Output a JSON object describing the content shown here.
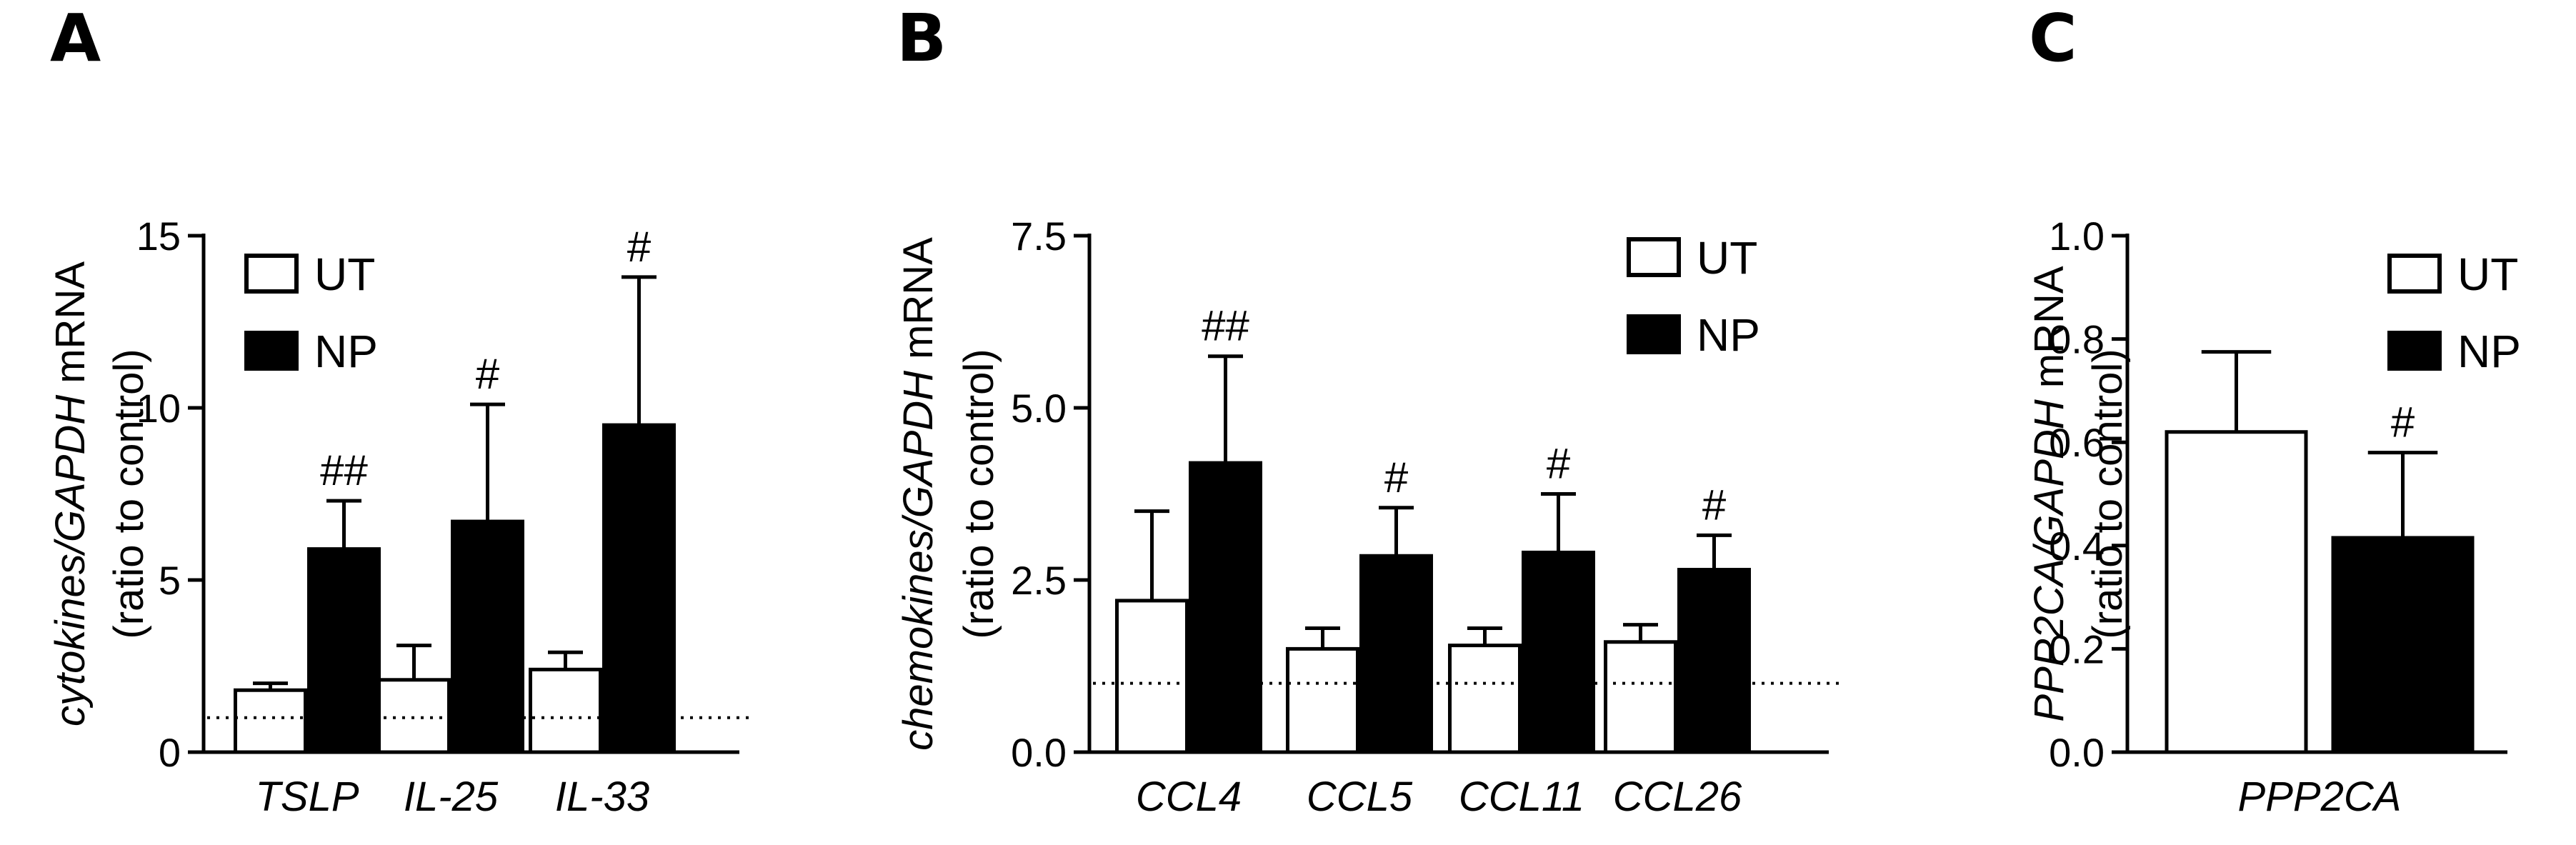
{
  "chart_data": [
    {
      "panel": "A",
      "type": "bar",
      "ylabel_italic": "cytokines/GAPDH",
      "ylabel_rest": " mRNA",
      "ylabel_line2": "(ratio to control)",
      "ylim": [
        0,
        15
      ],
      "yticks": [
        0,
        5,
        10,
        15
      ],
      "ytick_labels": [
        "0",
        "5",
        "10",
        "15"
      ],
      "categories": [
        "TSLP",
        "IL-25",
        "IL-33"
      ],
      "reference_line": 1,
      "legend": {
        "position": "top-left",
        "entries": [
          "UT",
          "NP"
        ]
      },
      "series": [
        {
          "name": "UT",
          "color": "#ffffff",
          "values": [
            1.8,
            2.1,
            2.4
          ],
          "errors": [
            0.2,
            1.0,
            0.5
          ]
        },
        {
          "name": "NP",
          "color": "#000000",
          "values": [
            5.9,
            6.7,
            9.5
          ],
          "errors": [
            1.4,
            3.4,
            4.3
          ]
        }
      ],
      "significance": [
        "##",
        "#",
        "#"
      ]
    },
    {
      "panel": "B",
      "type": "bar",
      "ylabel_italic": "chemokines/GAPDH",
      "ylabel_rest": " mRNA",
      "ylabel_line2": "(ratio to control)",
      "ylim": [
        0,
        7.5
      ],
      "yticks": [
        0,
        2.5,
        5,
        7.5
      ],
      "ytick_labels": [
        "0.0",
        "2.5",
        "5.0",
        "7.5"
      ],
      "categories": [
        "CCL4",
        "CCL5",
        "CCL11",
        "CCL26"
      ],
      "reference_line": 1,
      "legend": {
        "position": "top-right",
        "entries": [
          "UT",
          "NP"
        ]
      },
      "series": [
        {
          "name": "UT",
          "color": "#ffffff",
          "values": [
            2.2,
            1.5,
            1.55,
            1.6
          ],
          "errors": [
            1.3,
            0.3,
            0.25,
            0.25
          ]
        },
        {
          "name": "NP",
          "color": "#000000",
          "values": [
            4.2,
            2.85,
            2.9,
            2.65
          ],
          "errors": [
            1.55,
            0.7,
            0.85,
            0.5
          ]
        }
      ],
      "significance": [
        "##",
        "#",
        "#",
        "#"
      ]
    },
    {
      "panel": "C",
      "type": "bar",
      "ylabel_italic": "PPP2CA/GAPDH",
      "ylabel_rest": " mRNA",
      "ylabel_line2": "(ratio to control)",
      "ylim": [
        0,
        1
      ],
      "yticks": [
        0,
        0.2,
        0.4,
        0.6,
        0.8,
        1.0
      ],
      "ytick_labels": [
        "0.0",
        "0.2",
        "0.4",
        "0.6",
        "0.8",
        "1.0"
      ],
      "categories": [
        "PPP2CA"
      ],
      "legend": {
        "position": "top-right",
        "entries": [
          "UT",
          "NP"
        ]
      },
      "series": [
        {
          "name": "UT",
          "color": "#ffffff",
          "values": [
            0.62
          ],
          "errors": [
            0.155
          ]
        },
        {
          "name": "NP",
          "color": "#000000",
          "values": [
            0.415
          ],
          "errors": [
            0.165
          ]
        }
      ],
      "significance": [
        "#"
      ]
    }
  ]
}
